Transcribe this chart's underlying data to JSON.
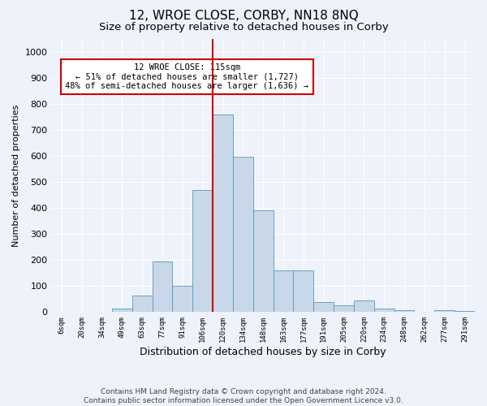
{
  "title": "12, WROE CLOSE, CORBY, NN18 8NQ",
  "subtitle": "Size of property relative to detached houses in Corby",
  "xlabel": "Distribution of detached houses by size in Corby",
  "ylabel": "Number of detached properties",
  "categories": [
    "6sqm",
    "20sqm",
    "34sqm",
    "49sqm",
    "63sqm",
    "77sqm",
    "91sqm",
    "106sqm",
    "120sqm",
    "134sqm",
    "148sqm",
    "163sqm",
    "177sqm",
    "191sqm",
    "205sqm",
    "220sqm",
    "234sqm",
    "248sqm",
    "262sqm",
    "277sqm",
    "291sqm"
  ],
  "values": [
    0,
    0,
    0,
    14,
    62,
    193,
    100,
    470,
    760,
    595,
    390,
    160,
    160,
    40,
    25,
    45,
    13,
    8,
    0,
    7,
    5
  ],
  "bar_color": "#c8d8e8",
  "bar_edge_color": "#5599bb",
  "background_color": "#eef2fb",
  "grid_color": "#ffffff",
  "vline_color": "#cc0000",
  "vline_x": 8.5,
  "annotation_text": "12 WROE CLOSE: 115sqm\n← 51% of detached houses are smaller (1,727)\n48% of semi-detached houses are larger (1,636) →",
  "annotation_box_color": "#ffffff",
  "annotation_box_edge_color": "#cc0000",
  "ylim": [
    0,
    1050
  ],
  "yticks": [
    0,
    100,
    200,
    300,
    400,
    500,
    600,
    700,
    800,
    900,
    1000
  ],
  "footer": "Contains HM Land Registry data © Crown copyright and database right 2024.\nContains public sector information licensed under the Open Government Licence v3.0.",
  "title_fontsize": 11,
  "subtitle_fontsize": 9.5,
  "annotation_fontsize": 7.5,
  "footer_fontsize": 6.5,
  "ylabel_fontsize": 8,
  "xlabel_fontsize": 9,
  "ytick_fontsize": 8,
  "xtick_fontsize": 6.5
}
